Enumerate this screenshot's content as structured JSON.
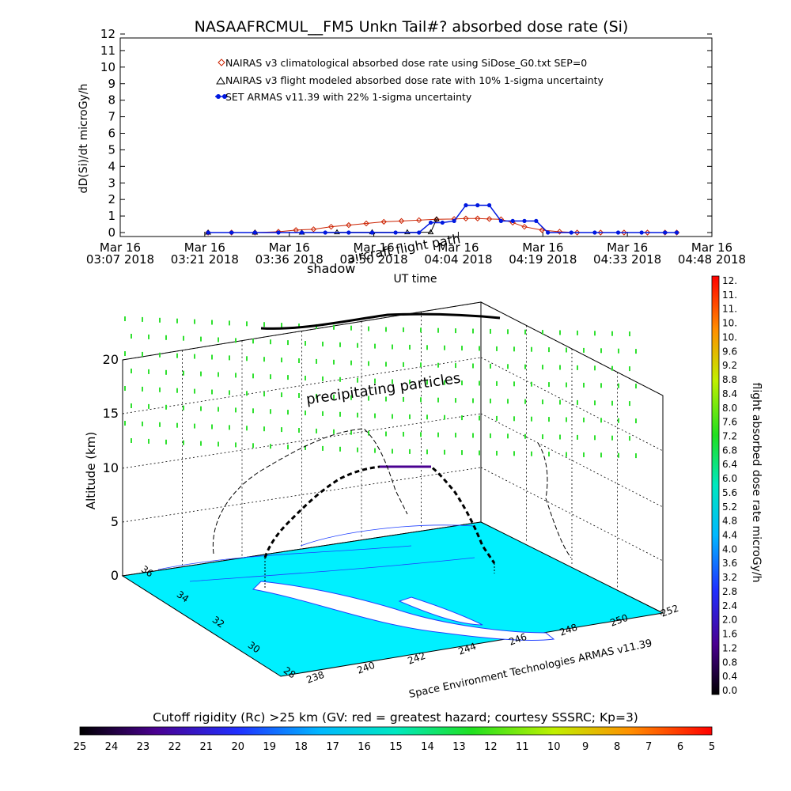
{
  "title": "NASAAFRCMUL__FM5 Unkn Tail#? absorbed dose rate (Si)",
  "colors": {
    "nairas_clim": "#cc2200",
    "nairas_flight": "#000000",
    "armas": "#0018e0",
    "particles": "#30e030",
    "terrain": "#00f0ff",
    "water": "#2040ff"
  },
  "chart_data": [
    {
      "type": "line",
      "title": "NASAAFRCMUL__FM5 Unkn Tail#? absorbed dose rate (Si)",
      "xlabel": "UT time",
      "ylabel": "dD(Si)/dt microGy/h",
      "ylim": [
        0,
        12
      ],
      "yticks": [
        "0",
        "1",
        "2",
        "3",
        "4",
        "5",
        "6",
        "7",
        "8",
        "9",
        "10",
        "11",
        "12"
      ],
      "xticks": [
        {
          "top": "Mar 16",
          "bottom": "03:07 2018"
        },
        {
          "top": "Mar 16",
          "bottom": "03:21 2018"
        },
        {
          "top": "Mar 16",
          "bottom": "03:36 2018"
        },
        {
          "top": "Mar 16",
          "bottom": "03:50 2018"
        },
        {
          "top": "Mar 16",
          "bottom": "04:04 2018"
        },
        {
          "top": "Mar 16",
          "bottom": "04:19 2018"
        },
        {
          "top": "Mar 16",
          "bottom": "04:33 2018"
        },
        {
          "top": "Mar 16",
          "bottom": "04:48 2018"
        }
      ],
      "legend_position": "top-center",
      "series": [
        {
          "name": "NAIRAS v3 climatological absorbed dose rate using SiDose_G0.txt SEP=0",
          "marker": "diamond",
          "x": [
            "03:22",
            "03:26",
            "03:30",
            "03:34",
            "03:37",
            "03:40",
            "03:43",
            "03:46",
            "03:49",
            "03:52",
            "03:55",
            "03:58",
            "04:01",
            "04:04",
            "04:06",
            "04:08",
            "04:10",
            "04:12",
            "04:14",
            "04:16",
            "04:19",
            "04:22",
            "04:25",
            "04:29",
            "04:33",
            "04:37",
            "04:40",
            "04:42"
          ],
          "y": [
            0,
            0,
            0,
            0.05,
            0.15,
            0.2,
            0.35,
            0.45,
            0.55,
            0.65,
            0.7,
            0.75,
            0.8,
            0.82,
            0.85,
            0.85,
            0.82,
            0.8,
            0.6,
            0.35,
            0.15,
            0.05,
            0,
            0,
            0,
            0,
            0,
            0
          ]
        },
        {
          "name": "NAIRAS v3 flight modeled absorbed dose rate with 10% 1-sigma uncertainty",
          "marker": "triangle",
          "x": [
            "03:22",
            "03:30",
            "03:38",
            "03:44",
            "03:50",
            "03:56",
            "04:00",
            "04:01"
          ],
          "y": [
            0,
            0,
            0,
            0.02,
            0.02,
            0.02,
            0.02,
            0.8
          ]
        },
        {
          "name": "SET ARMAS v11.39 with 22% 1-sigma uncertainty",
          "marker": "dot",
          "x": [
            "03:22",
            "03:26",
            "03:30",
            "03:34",
            "03:38",
            "03:42",
            "03:46",
            "03:50",
            "03:54",
            "03:58",
            "04:00",
            "04:02",
            "04:04",
            "04:06",
            "04:08",
            "04:10",
            "04:12",
            "04:14",
            "04:16",
            "04:18",
            "04:20",
            "04:24",
            "04:28",
            "04:32",
            "04:36",
            "04:40",
            "04:42"
          ],
          "y": [
            0,
            0,
            0,
            0,
            0,
            0,
            0,
            0,
            0,
            0,
            0.6,
            0.6,
            0.7,
            1.65,
            1.65,
            1.65,
            0.7,
            0.7,
            0.7,
            0.7,
            0,
            0,
            0,
            0,
            0,
            0,
            0
          ]
        }
      ]
    },
    {
      "type": "heatmap",
      "zlabel": "Altitude (km)",
      "zticks": [
        "0",
        "5",
        "10",
        "15",
        "20"
      ],
      "xticks": [
        "238",
        "240",
        "242",
        "244",
        "246",
        "248",
        "250",
        "252"
      ],
      "yticks": [
        "28",
        "30",
        "32",
        "34",
        "36"
      ],
      "annotations": [
        "precipitating particles",
        "shadow",
        "aircraft flight path"
      ],
      "credit": "Space Environment Technologies ARMAS v11.39"
    }
  ],
  "colorbar_right": {
    "label": "flight absorbed dose rate microGy/h",
    "ticks": [
      "12.",
      "11.",
      "11.",
      "10.",
      "10.",
      "9.6",
      "9.2",
      "8.8",
      "8.4",
      "8.0",
      "7.6",
      "7.2",
      "6.8",
      "6.4",
      "6.0",
      "5.6",
      "5.2",
      "4.8",
      "4.4",
      "4.0",
      "3.6",
      "3.2",
      "2.8",
      "2.4",
      "2.0",
      "1.6",
      "1.2",
      "0.8",
      "0.4",
      "0.0"
    ]
  },
  "colorbar_bottom": {
    "label": "Cutoff rigidity (Rc) >25 km (GV: red = greatest hazard; courtesy SSSRC; Kp=3)",
    "ticks": [
      "25",
      "24",
      "23",
      "22",
      "21",
      "20",
      "19",
      "18",
      "17",
      "16",
      "15",
      "14",
      "13",
      "12",
      "11",
      "10",
      "9",
      "8",
      "7",
      "6",
      "5"
    ]
  }
}
